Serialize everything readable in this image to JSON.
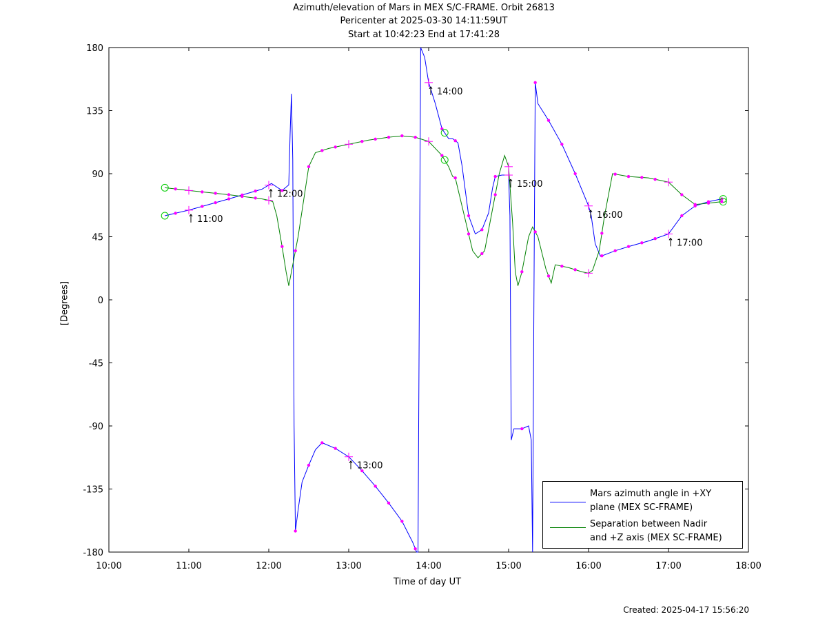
{
  "header": {
    "title": "Azimuth/elevation of Mars in MEX S/C-FRAME.  Orbit 26813",
    "subtitle1": "Pericenter at 2025-03-30 14:11:59UT",
    "subtitle2": "Start at 10:42:23 End at 17:41:28"
  },
  "footer": {
    "created": "Created: 2025-04-17 15:56:20"
  },
  "chart_data": {
    "type": "line",
    "title": "Azimuth/elevation of Mars in MEX S/C-FRAME.  Orbit 26813",
    "xlabel": "Time of day UT",
    "ylabel": "[Degrees]",
    "xlim": [
      "10:00",
      "18:00"
    ],
    "ylim": [
      -180,
      180
    ],
    "x_ticks": [
      "10:00",
      "11:00",
      "12:00",
      "13:00",
      "14:00",
      "15:00",
      "16:00",
      "17:00",
      "18:00"
    ],
    "y_ticks": [
      180,
      135,
      90,
      45,
      0,
      -45,
      -90,
      -135,
      -180
    ],
    "grid": false,
    "legend_position": "bottom-right",
    "series": [
      {
        "name": "Mars azimuth angle in +XY\nplane (MEX SC-FRAME)",
        "color": "#0000ff",
        "points": [
          [
            "10:42",
            60
          ],
          [
            "11:00",
            64
          ],
          [
            "11:30",
            72
          ],
          [
            "11:55",
            79
          ],
          [
            "12:02",
            83
          ],
          [
            "12:10",
            78
          ],
          [
            "12:15",
            82
          ],
          [
            "12:16",
            118
          ],
          [
            "12:17",
            147
          ],
          [
            "12:18",
            100
          ],
          [
            "12:19",
            -90
          ],
          [
            "12:20",
            -165
          ],
          [
            "12:22",
            -150
          ],
          [
            "12:25",
            -130
          ],
          [
            "12:30",
            -118
          ],
          [
            "12:35",
            -107
          ],
          [
            "12:40",
            -102
          ],
          [
            "12:50",
            -106
          ],
          [
            "13:00",
            -112
          ],
          [
            "13:10",
            -122
          ],
          [
            "13:20",
            -133
          ],
          [
            "13:30",
            -145
          ],
          [
            "13:40",
            -158
          ],
          [
            "13:48",
            -173
          ],
          [
            "13:51",
            -180
          ],
          [
            "13:52",
            -180
          ],
          [
            "13:53",
            0
          ],
          [
            "13:54",
            180
          ],
          [
            "13:57",
            173
          ],
          [
            "14:00",
            155
          ],
          [
            "14:05",
            140
          ],
          [
            "14:10",
            122
          ],
          [
            "14:15",
            115
          ],
          [
            "14:18",
            115
          ],
          [
            "14:22",
            112
          ],
          [
            "14:25",
            96
          ],
          [
            "14:30",
            60
          ],
          [
            "14:35",
            47
          ],
          [
            "14:40",
            50
          ],
          [
            "14:45",
            62
          ],
          [
            "14:48",
            80
          ],
          [
            "14:50",
            88
          ],
          [
            "14:55",
            89
          ],
          [
            "15:00",
            89
          ],
          [
            "15:01",
            60
          ],
          [
            "15:02",
            -100
          ],
          [
            "15:04",
            -92
          ],
          [
            "15:10",
            -92
          ],
          [
            "15:15",
            -90
          ],
          [
            "15:17",
            -100
          ],
          [
            "15:18",
            -180
          ],
          [
            "15:19",
            0
          ],
          [
            "15:20",
            155
          ],
          [
            "15:22",
            140
          ],
          [
            "15:26",
            134
          ],
          [
            "15:30",
            128
          ],
          [
            "15:40",
            111
          ],
          [
            "15:50",
            90
          ],
          [
            "16:00",
            67
          ],
          [
            "16:02",
            60
          ],
          [
            "16:05",
            40
          ],
          [
            "16:09",
            31
          ],
          [
            "16:20",
            35
          ],
          [
            "16:30",
            38
          ],
          [
            "16:45",
            42
          ],
          [
            "17:00",
            47
          ],
          [
            "17:10",
            60
          ],
          [
            "17:20",
            67
          ],
          [
            "17:30",
            70
          ],
          [
            "17:40",
            72
          ],
          [
            "17:41",
            72
          ]
        ]
      },
      {
        "name": "Separation between Nadir\nand +Z axis (MEX SC-FRAME)",
        "color": "#008000",
        "points": [
          [
            "10:42",
            80
          ],
          [
            "11:00",
            78
          ],
          [
            "11:30",
            75
          ],
          [
            "11:55",
            72
          ],
          [
            "12:00",
            71
          ],
          [
            "12:03",
            70
          ],
          [
            "12:06",
            60
          ],
          [
            "12:10",
            38
          ],
          [
            "12:13",
            20
          ],
          [
            "12:15",
            10
          ],
          [
            "12:18",
            25
          ],
          [
            "12:22",
            45
          ],
          [
            "12:26",
            70
          ],
          [
            "12:30",
            95
          ],
          [
            "12:35",
            105
          ],
          [
            "12:45",
            108
          ],
          [
            "13:00",
            111
          ],
          [
            "13:15",
            114
          ],
          [
            "13:30",
            116
          ],
          [
            "13:40",
            117
          ],
          [
            "13:50",
            116
          ],
          [
            "14:00",
            113
          ],
          [
            "14:10",
            103
          ],
          [
            "14:15",
            95
          ],
          [
            "14:18",
            88
          ],
          [
            "14:20",
            87
          ],
          [
            "14:23",
            75
          ],
          [
            "14:28",
            55
          ],
          [
            "14:33",
            35
          ],
          [
            "14:37",
            30
          ],
          [
            "14:42",
            35
          ],
          [
            "14:47",
            60
          ],
          [
            "14:53",
            90
          ],
          [
            "14:57",
            103
          ],
          [
            "15:00",
            95
          ],
          [
            "15:03",
            55
          ],
          [
            "15:05",
            20
          ],
          [
            "15:07",
            10
          ],
          [
            "15:10",
            20
          ],
          [
            "15:15",
            45
          ],
          [
            "15:18",
            52
          ],
          [
            "15:22",
            45
          ],
          [
            "15:28",
            22
          ],
          [
            "15:32",
            12
          ],
          [
            "15:35",
            25
          ],
          [
            "15:45",
            23
          ],
          [
            "15:55",
            20
          ],
          [
            "16:00",
            19
          ],
          [
            "16:03",
            21
          ],
          [
            "16:08",
            35
          ],
          [
            "16:12",
            60
          ],
          [
            "16:18",
            90
          ],
          [
            "16:30",
            88
          ],
          [
            "16:45",
            87
          ],
          [
            "17:00",
            84
          ],
          [
            "17:10",
            75
          ],
          [
            "17:20",
            68
          ],
          [
            "17:30",
            69
          ],
          [
            "17:40",
            70
          ],
          [
            "17:41",
            70
          ]
        ]
      }
    ],
    "annotations": [
      "11:00",
      "12:00",
      "13:00",
      "14:00",
      "15:00",
      "16:00",
      "17:00"
    ]
  }
}
